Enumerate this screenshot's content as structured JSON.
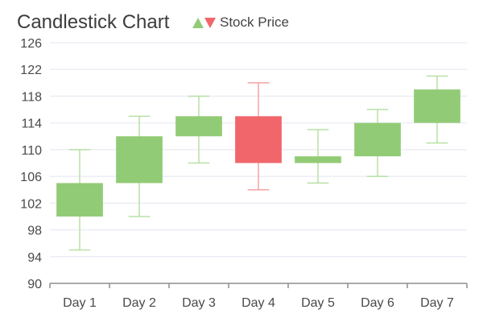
{
  "chart_data": {
    "type": "candlestick",
    "title": "Candlestick Chart",
    "legend": {
      "label": "Stock Price",
      "placement": "top",
      "up_color": "#92cb75",
      "down_color": "#f0666a"
    },
    "categories": [
      "Day 1",
      "Day 2",
      "Day 3",
      "Day 4",
      "Day 5",
      "Day 6",
      "Day 7"
    ],
    "series": [
      {
        "name": "Stock Price",
        "open": [
          100,
          105,
          112,
          115,
          108,
          109,
          114
        ],
        "high": [
          110,
          115,
          118,
          120,
          113,
          116,
          121
        ],
        "low": [
          95,
          100,
          108,
          104,
          105,
          106,
          111
        ],
        "close": [
          105,
          112,
          115,
          108,
          109,
          114,
          119
        ]
      }
    ],
    "ylim": [
      90,
      126
    ],
    "yticks": [
      90,
      94,
      98,
      102,
      106,
      110,
      114,
      118,
      122,
      126
    ],
    "grid": true,
    "colors": {
      "up": "#92cb75",
      "down": "#f0666a",
      "up_wick": "#b9e0a5",
      "down_wick": "#f5a3a5",
      "grid": "#eceef5",
      "axis": "#8e8e8e",
      "text": "#4a4a4a"
    }
  }
}
